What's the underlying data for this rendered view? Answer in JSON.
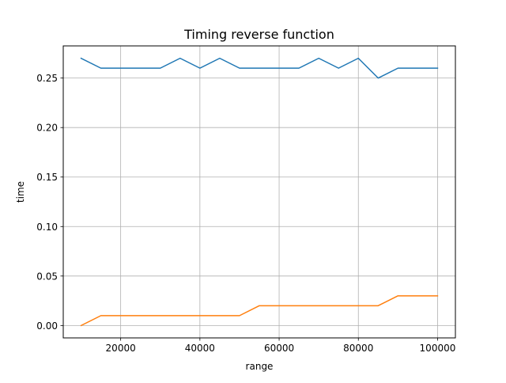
{
  "chart_data": {
    "type": "line",
    "title": "Timing reverse function",
    "xlabel": "range",
    "ylabel": "time",
    "xlim": [
      5500,
      104500
    ],
    "ylim": [
      -0.0125,
      0.2825
    ],
    "x_ticks": [
      {
        "value": 20000,
        "label": "20000"
      },
      {
        "value": 40000,
        "label": "40000"
      },
      {
        "value": 60000,
        "label": "60000"
      },
      {
        "value": 80000,
        "label": "80000"
      },
      {
        "value": 100000,
        "label": "100000"
      }
    ],
    "y_ticks": [
      {
        "value": 0.0,
        "label": "0.00"
      },
      {
        "value": 0.05,
        "label": "0.05"
      },
      {
        "value": 0.1,
        "label": "0.10"
      },
      {
        "value": 0.15,
        "label": "0.15"
      },
      {
        "value": 0.2,
        "label": "0.20"
      },
      {
        "value": 0.25,
        "label": "0.25"
      }
    ],
    "grid": true,
    "x": [
      10000,
      15000,
      20000,
      25000,
      30000,
      35000,
      40000,
      45000,
      50000,
      55000,
      60000,
      65000,
      70000,
      75000,
      80000,
      85000,
      90000,
      95000,
      100000
    ],
    "series": [
      {
        "color": "#1f77b4",
        "values": [
          0.27,
          0.26,
          0.26,
          0.26,
          0.26,
          0.27,
          0.26,
          0.27,
          0.26,
          0.26,
          0.26,
          0.26,
          0.27,
          0.26,
          0.27,
          0.25,
          0.26,
          0.26,
          0.26
        ]
      },
      {
        "color": "#ff7f0e",
        "values": [
          0.0,
          0.01,
          0.01,
          0.01,
          0.01,
          0.01,
          0.01,
          0.01,
          0.01,
          0.02,
          0.02,
          0.02,
          0.02,
          0.02,
          0.02,
          0.02,
          0.03,
          0.03,
          0.03
        ]
      }
    ]
  }
}
